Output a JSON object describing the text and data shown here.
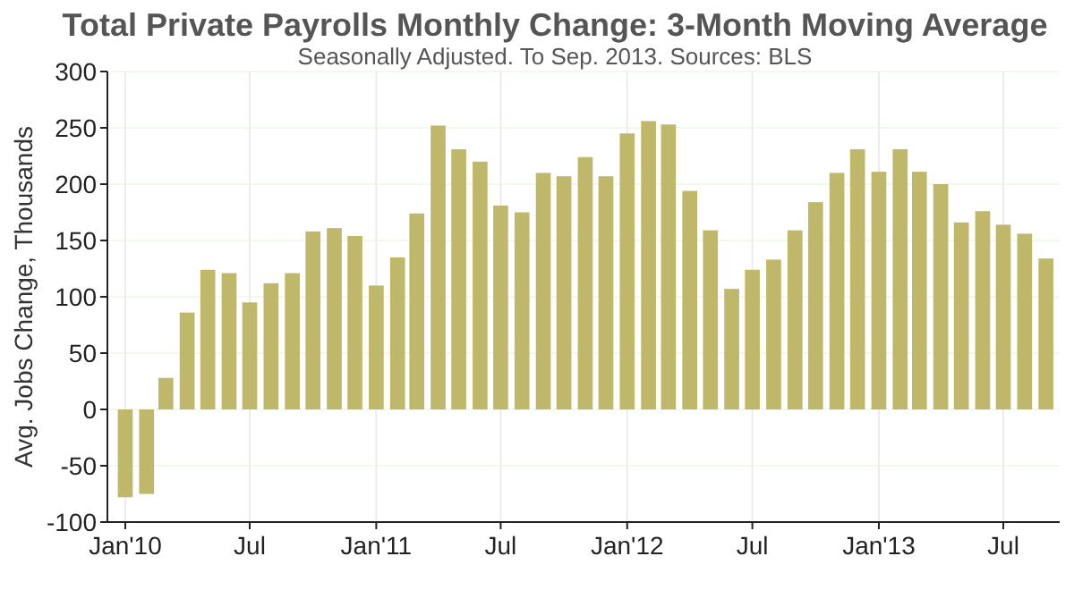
{
  "chart_data": {
    "type": "bar",
    "title": "Total Private Payrolls Monthly Change: 3-Month Moving Average",
    "subtitle": "Seasonally Adjusted. To Sep. 2013. Sources: BLS",
    "ylabel": "Avg. Jobs Change, Thousands",
    "x": [
      "2010-01",
      "2010-02",
      "2010-03",
      "2010-04",
      "2010-05",
      "2010-06",
      "2010-07",
      "2010-08",
      "2010-09",
      "2010-10",
      "2010-11",
      "2010-12",
      "2011-01",
      "2011-02",
      "2011-03",
      "2011-04",
      "2011-05",
      "2011-06",
      "2011-07",
      "2011-08",
      "2011-09",
      "2011-10",
      "2011-11",
      "2011-12",
      "2012-01",
      "2012-02",
      "2012-03",
      "2012-04",
      "2012-05",
      "2012-06",
      "2012-07",
      "2012-08",
      "2012-09",
      "2012-10",
      "2012-11",
      "2012-12",
      "2013-01",
      "2013-02",
      "2013-03",
      "2013-04",
      "2013-05",
      "2013-06",
      "2013-07",
      "2013-08",
      "2013-09"
    ],
    "values": [
      -78,
      -75,
      28,
      86,
      124,
      121,
      95,
      112,
      121,
      158,
      161,
      154,
      110,
      135,
      174,
      252,
      231,
      220,
      181,
      175,
      210,
      207,
      224,
      207,
      245,
      256,
      253,
      194,
      159,
      107,
      124,
      133,
      159,
      184,
      210,
      231,
      211,
      231,
      211,
      200,
      166,
      176,
      164,
      156,
      134
    ],
    "color": "#bfb86b",
    "xlim": [
      "2009-12-06",
      "2013-09-21"
    ],
    "xticks": [
      {
        "value": "2010-01",
        "label": "Jan'10"
      },
      {
        "value": "2010-07",
        "label": "Jul"
      },
      {
        "value": "2011-01",
        "label": "Jan'11"
      },
      {
        "value": "2011-07",
        "label": "Jul"
      },
      {
        "value": "2012-01",
        "label": "Jan'12"
      },
      {
        "value": "2012-07",
        "label": "Jul"
      },
      {
        "value": "2013-01",
        "label": "Jan'13"
      },
      {
        "value": "2013-07",
        "label": "Jul"
      }
    ],
    "ylim": [
      -100,
      300
    ],
    "yticks": [
      -100,
      -50,
      0,
      50,
      100,
      150,
      200,
      250,
      300
    ],
    "grid": true
  }
}
